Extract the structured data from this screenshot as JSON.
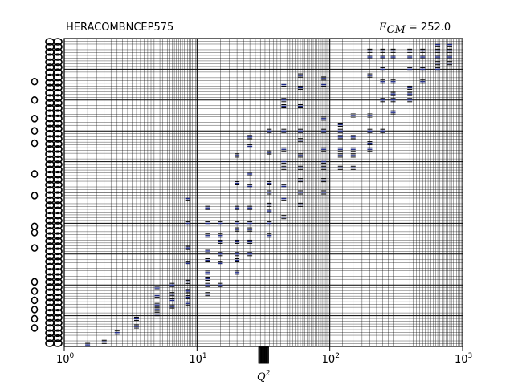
{
  "chart_data": {
    "type": "scatter",
    "title": "HERACOMBNCEP575",
    "annotation": {
      "symbol": "E",
      "subscript": "CM",
      "value_text": " = 252.0"
    },
    "xlabel": "Q",
    "xlabel_superscript": "2",
    "ylabel": "",
    "xscale": "log",
    "xlim": [
      1,
      1000
    ],
    "x_ticks": [
      {
        "base": "10",
        "exp": "0"
      },
      {
        "base": "10",
        "exp": "1"
      },
      {
        "base": "10",
        "exp": "2"
      },
      {
        "base": "10",
        "exp": "3"
      }
    ],
    "grid": true,
    "legend": "none",
    "series": [
      {
        "color": "#1f2b8a",
        "points": [
          [
            1.5,
            0.995
          ],
          [
            2.0,
            0.985
          ],
          [
            2.5,
            0.955
          ],
          [
            3.5,
            0.935
          ],
          [
            3.5,
            0.91
          ],
          [
            5.0,
            0.895
          ],
          [
            5.0,
            0.88
          ],
          [
            5.0,
            0.865
          ],
          [
            5.0,
            0.835
          ],
          [
            5.0,
            0.81
          ],
          [
            6.5,
            0.87
          ],
          [
            6.5,
            0.85
          ],
          [
            6.5,
            0.83
          ],
          [
            6.5,
            0.8
          ],
          [
            8.5,
            0.86
          ],
          [
            8.5,
            0.84
          ],
          [
            8.5,
            0.82
          ],
          [
            8.5,
            0.79
          ],
          [
            8.5,
            0.73
          ],
          [
            8.5,
            0.68
          ],
          [
            8.5,
            0.6
          ],
          [
            8.5,
            0.52
          ],
          [
            12.0,
            0.83
          ],
          [
            12.0,
            0.8
          ],
          [
            12.0,
            0.78
          ],
          [
            12.0,
            0.76
          ],
          [
            12.0,
            0.72
          ],
          [
            12.0,
            0.69
          ],
          [
            12.0,
            0.64
          ],
          [
            12.0,
            0.6
          ],
          [
            12.0,
            0.55
          ],
          [
            15.0,
            0.8
          ],
          [
            15.0,
            0.73
          ],
          [
            15.0,
            0.7
          ],
          [
            15.0,
            0.66
          ],
          [
            15.0,
            0.64
          ],
          [
            15.0,
            0.6
          ],
          [
            20.0,
            0.76
          ],
          [
            20.0,
            0.72
          ],
          [
            20.0,
            0.7
          ],
          [
            20.0,
            0.66
          ],
          [
            20.0,
            0.62
          ],
          [
            20.0,
            0.6
          ],
          [
            20.0,
            0.55
          ],
          [
            20.0,
            0.47
          ],
          [
            20.0,
            0.38
          ],
          [
            25.0,
            0.7
          ],
          [
            25.0,
            0.66
          ],
          [
            25.0,
            0.62
          ],
          [
            25.0,
            0.6
          ],
          [
            25.0,
            0.55
          ],
          [
            25.0,
            0.48
          ],
          [
            25.0,
            0.44
          ],
          [
            25.0,
            0.35
          ],
          [
            25.0,
            0.32
          ],
          [
            35.0,
            0.64
          ],
          [
            35.0,
            0.6
          ],
          [
            35.0,
            0.56
          ],
          [
            35.0,
            0.54
          ],
          [
            35.0,
            0.5
          ],
          [
            35.0,
            0.47
          ],
          [
            35.0,
            0.37
          ],
          [
            35.0,
            0.3
          ],
          [
            45.0,
            0.58
          ],
          [
            45.0,
            0.52
          ],
          [
            45.0,
            0.48
          ],
          [
            45.0,
            0.42
          ],
          [
            45.0,
            0.4
          ],
          [
            45.0,
            0.36
          ],
          [
            45.0,
            0.3
          ],
          [
            45.0,
            0.22
          ],
          [
            45.0,
            0.2
          ],
          [
            45.0,
            0.15
          ],
          [
            60.0,
            0.54
          ],
          [
            60.0,
            0.5
          ],
          [
            60.0,
            0.46
          ],
          [
            60.0,
            0.42
          ],
          [
            60.0,
            0.38
          ],
          [
            60.0,
            0.33
          ],
          [
            60.0,
            0.3
          ],
          [
            60.0,
            0.22
          ],
          [
            60.0,
            0.16
          ],
          [
            60.0,
            0.12
          ],
          [
            90.0,
            0.5
          ],
          [
            90.0,
            0.46
          ],
          [
            90.0,
            0.42
          ],
          [
            90.0,
            0.4
          ],
          [
            90.0,
            0.36
          ],
          [
            90.0,
            0.3
          ],
          [
            90.0,
            0.26
          ],
          [
            90.0,
            0.15
          ],
          [
            90.0,
            0.13
          ],
          [
            120.0,
            0.42
          ],
          [
            120.0,
            0.38
          ],
          [
            120.0,
            0.36
          ],
          [
            120.0,
            0.32
          ],
          [
            120.0,
            0.3
          ],
          [
            120.0,
            0.28
          ],
          [
            150.0,
            0.42
          ],
          [
            150.0,
            0.38
          ],
          [
            150.0,
            0.36
          ],
          [
            150.0,
            0.32
          ],
          [
            150.0,
            0.25
          ],
          [
            200.0,
            0.36
          ],
          [
            200.0,
            0.34
          ],
          [
            200.0,
            0.3
          ],
          [
            200.0,
            0.25
          ],
          [
            200.0,
            0.12
          ],
          [
            200.0,
            0.06
          ],
          [
            200.0,
            0.04
          ],
          [
            250.0,
            0.3
          ],
          [
            250.0,
            0.2
          ],
          [
            250.0,
            0.14
          ],
          [
            250.0,
            0.1
          ],
          [
            250.0,
            0.06
          ],
          [
            250.0,
            0.04
          ],
          [
            300.0,
            0.24
          ],
          [
            300.0,
            0.2
          ],
          [
            300.0,
            0.18
          ],
          [
            300.0,
            0.14
          ],
          [
            300.0,
            0.06
          ],
          [
            300.0,
            0.04
          ],
          [
            400.0,
            0.2
          ],
          [
            400.0,
            0.18
          ],
          [
            400.0,
            0.16
          ],
          [
            400.0,
            0.1
          ],
          [
            400.0,
            0.06
          ],
          [
            400.0,
            0.04
          ],
          [
            500.0,
            0.14
          ],
          [
            500.0,
            0.1
          ],
          [
            500.0,
            0.06
          ],
          [
            500.0,
            0.04
          ],
          [
            650.0,
            0.1
          ],
          [
            650.0,
            0.08
          ],
          [
            650.0,
            0.06
          ],
          [
            650.0,
            0.04
          ],
          [
            650.0,
            0.02
          ],
          [
            800.0,
            0.08
          ],
          [
            800.0,
            0.06
          ],
          [
            800.0,
            0.04
          ],
          [
            800.0,
            0.02
          ]
        ]
      }
    ]
  }
}
